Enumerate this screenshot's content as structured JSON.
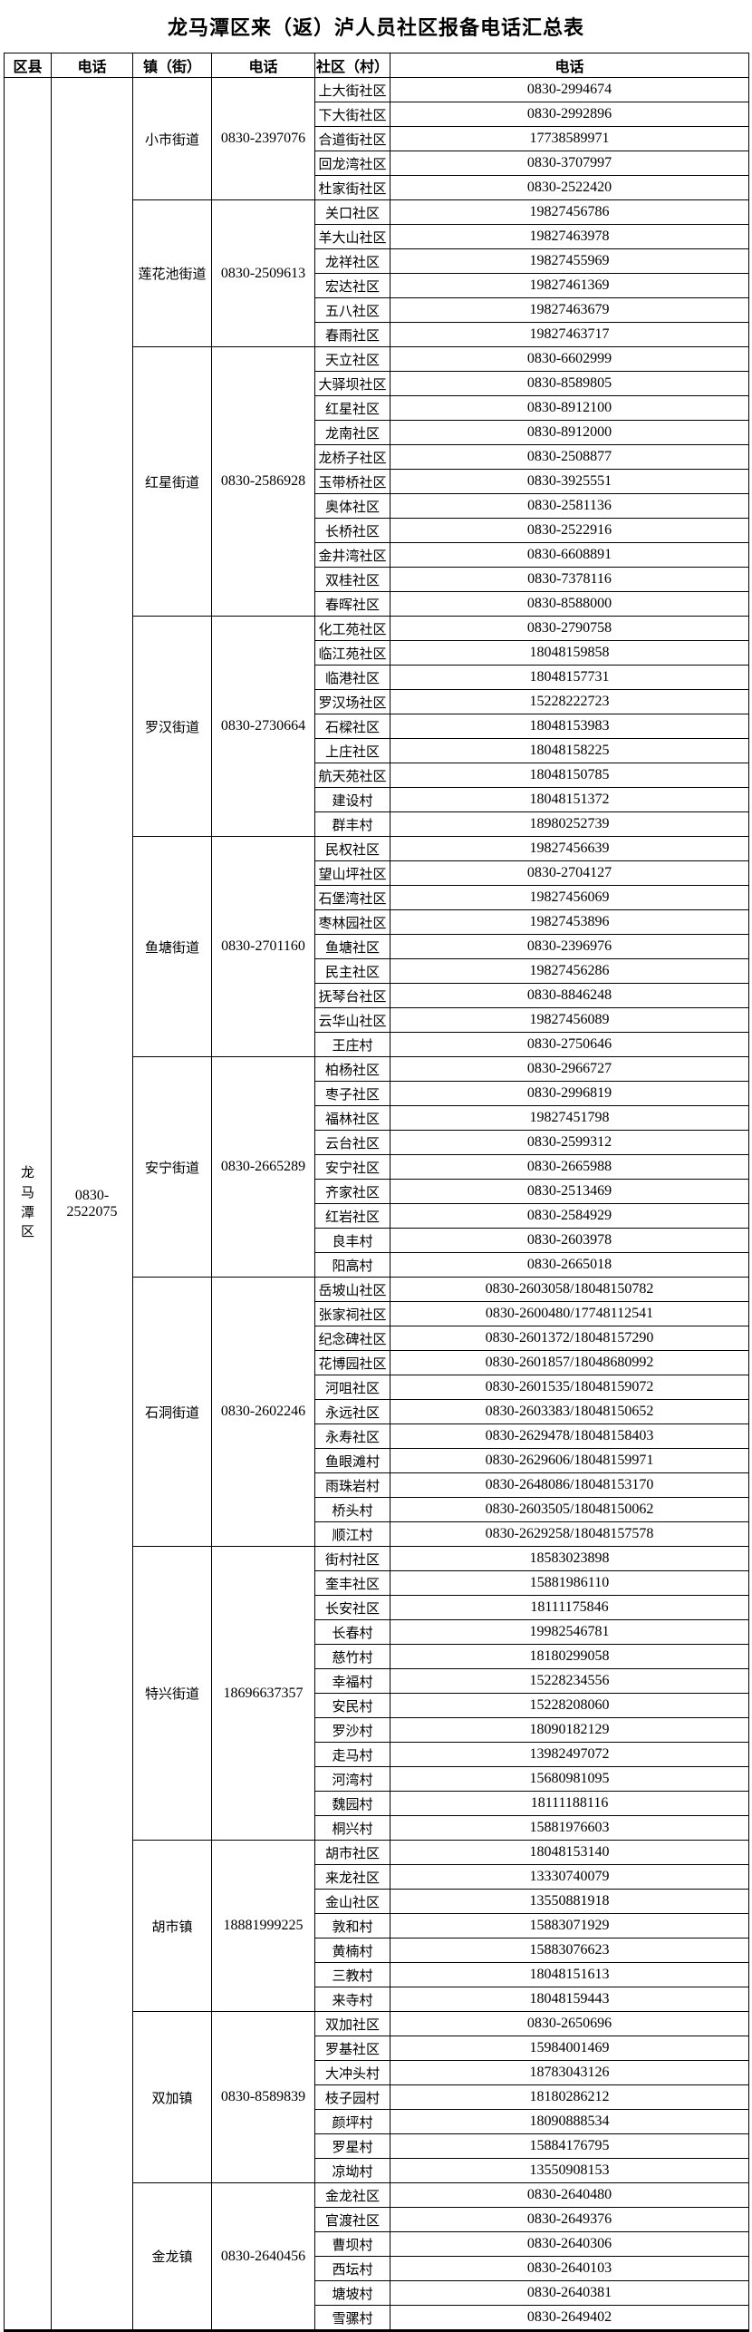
{
  "title": "龙马潭区来（返）泸人员社区报备电话汇总表",
  "columns": [
    "区县",
    "电话",
    "镇（街）",
    "电话",
    "社区（村）",
    "电话"
  ],
  "district": {
    "name": "龙马潭区",
    "phone": "0830-2522075"
  },
  "towns": [
    {
      "name": "小市街道",
      "phone": "0830-2397076",
      "communities": [
        {
          "name": "上大街社区",
          "phone": "0830-2994674"
        },
        {
          "name": "下大街社区",
          "phone": "0830-2992896"
        },
        {
          "name": "合道街社区",
          "phone": "17738589971"
        },
        {
          "name": "回龙湾社区",
          "phone": "0830-3707997"
        },
        {
          "name": "杜家街社区",
          "phone": "0830-2522420"
        }
      ]
    },
    {
      "name": "莲花池街道",
      "phone": "0830-2509613",
      "communities": [
        {
          "name": "关口社区",
          "phone": "19827456786"
        },
        {
          "name": "羊大山社区",
          "phone": "19827463978"
        },
        {
          "name": "龙祥社区",
          "phone": "19827455969"
        },
        {
          "name": "宏达社区",
          "phone": "19827461369"
        },
        {
          "name": "五八社区",
          "phone": "19827463679"
        },
        {
          "name": "春雨社区",
          "phone": "19827463717"
        }
      ]
    },
    {
      "name": "红星街道",
      "phone": "0830-2586928",
      "communities": [
        {
          "name": "天立社区",
          "phone": "0830-6602999"
        },
        {
          "name": "大驿坝社区",
          "phone": "0830-8589805"
        },
        {
          "name": "红星社区",
          "phone": "0830-8912100"
        },
        {
          "name": "龙南社区",
          "phone": "0830-8912000"
        },
        {
          "name": "龙桥子社区",
          "phone": "0830-2508877"
        },
        {
          "name": "玉带桥社区",
          "phone": "0830-3925551"
        },
        {
          "name": "奥体社区",
          "phone": "0830-2581136"
        },
        {
          "name": "长桥社区",
          "phone": "0830-2522916"
        },
        {
          "name": "金井湾社区",
          "phone": "0830-6608891"
        },
        {
          "name": "双桂社区",
          "phone": "0830-7378116"
        },
        {
          "name": "春晖社区",
          "phone": "0830-8588000"
        }
      ]
    },
    {
      "name": "罗汉街道",
      "phone": "0830-2730664",
      "communities": [
        {
          "name": "化工苑社区",
          "phone": "0830-2790758"
        },
        {
          "name": "临江苑社区",
          "phone": "18048159858"
        },
        {
          "name": "临港社区",
          "phone": "18048157731"
        },
        {
          "name": "罗汉场社区",
          "phone": "15228222723"
        },
        {
          "name": "石樑社区",
          "phone": "18048153983"
        },
        {
          "name": "上庄社区",
          "phone": "18048158225"
        },
        {
          "name": "航天苑社区",
          "phone": "18048150785"
        },
        {
          "name": "建设村",
          "phone": "18048151372"
        },
        {
          "name": "群丰村",
          "phone": "18980252739"
        }
      ]
    },
    {
      "name": "鱼塘街道",
      "phone": "0830-2701160",
      "communities": [
        {
          "name": "民权社区",
          "phone": "19827456639"
        },
        {
          "name": "望山坪社区",
          "phone": "0830-2704127"
        },
        {
          "name": "石堡湾社区",
          "phone": "19827456069"
        },
        {
          "name": "枣林园社区",
          "phone": "19827453896"
        },
        {
          "name": "鱼塘社区",
          "phone": "0830-2396976"
        },
        {
          "name": "民主社区",
          "phone": "19827456286"
        },
        {
          "name": "抚琴台社区",
          "phone": "0830-8846248"
        },
        {
          "name": "云华山社区",
          "phone": "19827456089"
        },
        {
          "name": "王庄村",
          "phone": "0830-2750646"
        }
      ]
    },
    {
      "name": "安宁街道",
      "phone": "0830-2665289",
      "communities": [
        {
          "name": "柏杨社区",
          "phone": "0830-2966727"
        },
        {
          "name": "枣子社区",
          "phone": "0830-2996819"
        },
        {
          "name": "福林社区",
          "phone": "19827451798"
        },
        {
          "name": "云台社区",
          "phone": "0830-2599312"
        },
        {
          "name": "安宁社区",
          "phone": "0830-2665988"
        },
        {
          "name": "齐家社区",
          "phone": "0830-2513469"
        },
        {
          "name": "红岩社区",
          "phone": "0830-2584929"
        },
        {
          "name": "良丰村",
          "phone": "0830-2603978"
        },
        {
          "name": "阳高村",
          "phone": "0830-2665018"
        }
      ]
    },
    {
      "name": "石洞街道",
      "phone": "0830-2602246",
      "communities": [
        {
          "name": "岳坡山社区",
          "phone": "0830-2603058/18048150782"
        },
        {
          "name": "张家祠社区",
          "phone": "0830-2600480/17748112541"
        },
        {
          "name": "纪念碑社区",
          "phone": "0830-2601372/18048157290"
        },
        {
          "name": "花博园社区",
          "phone": "0830-2601857/18048680992"
        },
        {
          "name": "河咀社区",
          "phone": "0830-2601535/18048159072"
        },
        {
          "name": "永远社区",
          "phone": "0830-2603383/18048150652"
        },
        {
          "name": "永寿社区",
          "phone": "0830-2629478/18048158403"
        },
        {
          "name": "鱼眼滩村",
          "phone": "0830-2629606/18048159971"
        },
        {
          "name": "雨珠岩村",
          "phone": "0830-2648086/18048153170"
        },
        {
          "name": "桥头村",
          "phone": "0830-2603505/18048150062"
        },
        {
          "name": "顺江村",
          "phone": "0830-2629258/18048157578"
        }
      ]
    },
    {
      "name": "特兴街道",
      "phone": "18696637357",
      "communities": [
        {
          "name": "街村社区",
          "phone": "18583023898"
        },
        {
          "name": "奎丰社区",
          "phone": "15881986110"
        },
        {
          "name": "长安社区",
          "phone": "18111175846"
        },
        {
          "name": "长春村",
          "phone": "19982546781"
        },
        {
          "name": "慈竹村",
          "phone": "18180299058"
        },
        {
          "name": "幸福村",
          "phone": "15228234556"
        },
        {
          "name": "安民村",
          "phone": "15228208060"
        },
        {
          "name": "罗沙村",
          "phone": "18090182129"
        },
        {
          "name": "走马村",
          "phone": "13982497072"
        },
        {
          "name": "河湾村",
          "phone": "15680981095"
        },
        {
          "name": "魏园村",
          "phone": "18111188116"
        },
        {
          "name": "桐兴村",
          "phone": "15881976603"
        }
      ]
    },
    {
      "name": "胡市镇",
      "phone": "18881999225",
      "communities": [
        {
          "name": "胡市社区",
          "phone": "18048153140"
        },
        {
          "name": "来龙社区",
          "phone": "13330740079"
        },
        {
          "name": "金山社区",
          "phone": "13550881918"
        },
        {
          "name": "敦和村",
          "phone": "15883071929"
        },
        {
          "name": "黄楠村",
          "phone": "15883076623"
        },
        {
          "name": "三教村",
          "phone": "18048151613"
        },
        {
          "name": "来寺村",
          "phone": "18048159443"
        }
      ]
    },
    {
      "name": "双加镇",
      "phone": "0830-8589839",
      "communities": [
        {
          "name": "双加社区",
          "phone": "0830-2650696"
        },
        {
          "name": "罗基社区",
          "phone": "15984001469"
        },
        {
          "name": "大冲头村",
          "phone": "18783043126"
        },
        {
          "name": "枝子园村",
          "phone": "18180286212"
        },
        {
          "name": "颜坪村",
          "phone": "18090888534"
        },
        {
          "name": "罗星村",
          "phone": "15884176795"
        },
        {
          "name": "凉坳村",
          "phone": "13550908153"
        }
      ]
    },
    {
      "name": "金龙镇",
      "phone": "0830-2640456",
      "communities": [
        {
          "name": "金龙社区",
          "phone": "0830-2640480"
        },
        {
          "name": "官渡社区",
          "phone": "0830-2649376"
        },
        {
          "name": "曹坝村",
          "phone": "0830-2640306"
        },
        {
          "name": "西坛村",
          "phone": "0830-2640103"
        },
        {
          "name": "塘坡村",
          "phone": "0830-2640381"
        },
        {
          "name": "雪骡村",
          "phone": "0830-2649402"
        }
      ]
    }
  ]
}
